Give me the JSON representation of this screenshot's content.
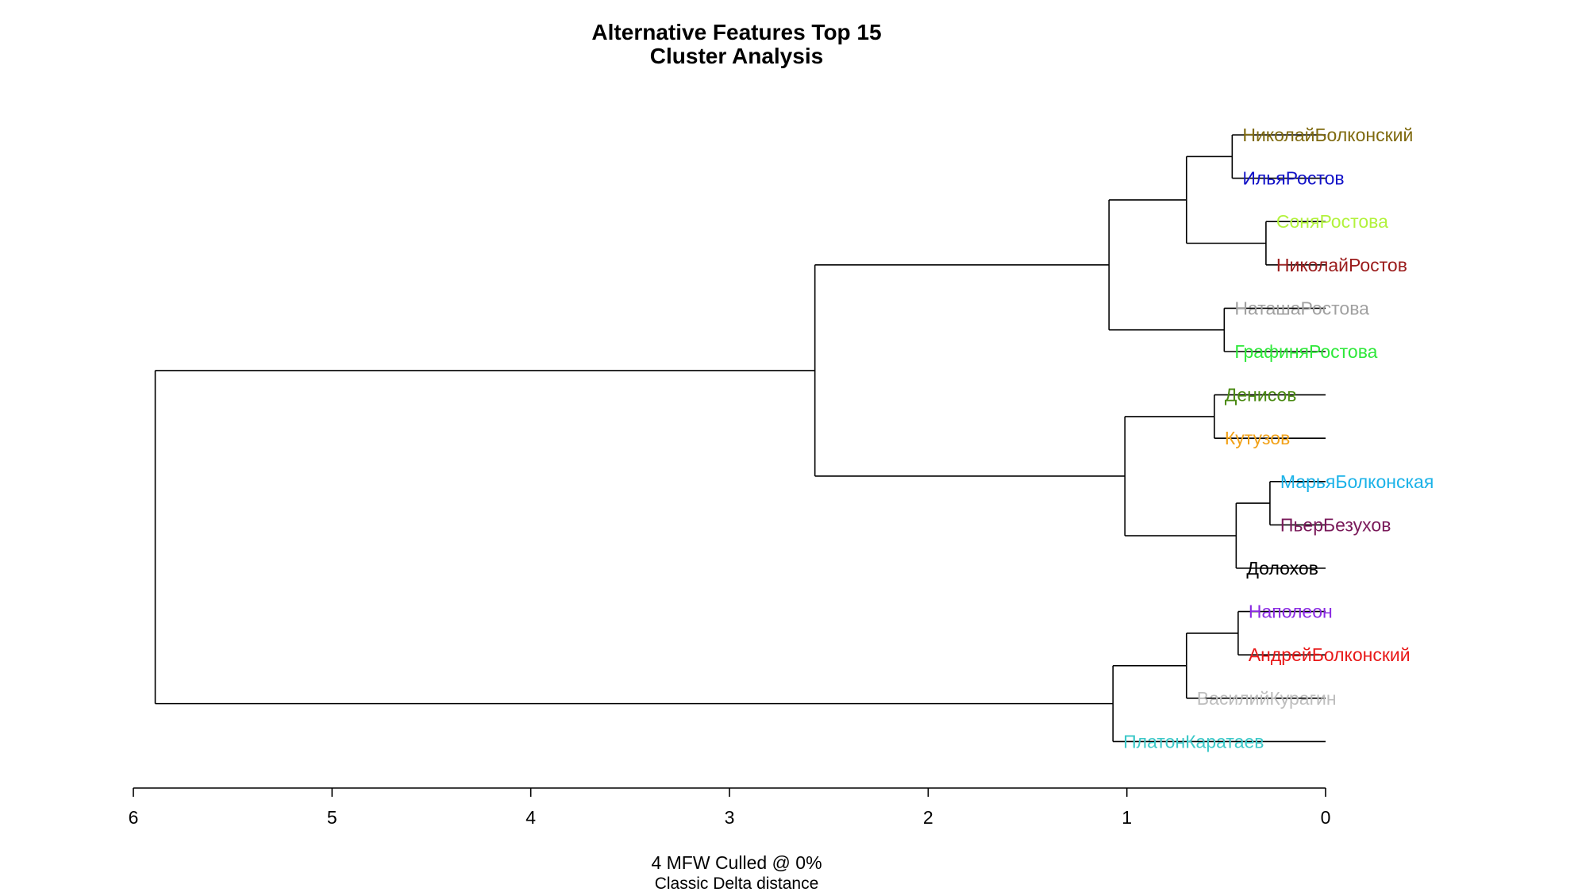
{
  "chart_data": {
    "type": "dendrogram",
    "title": [
      "Alternative Features Top 15",
      "Cluster Analysis"
    ],
    "xlabel": [
      "4 MFW  Culled @ 0%",
      "Classic Delta distance"
    ],
    "xlim": [
      6,
      0
    ],
    "xticks": [
      6,
      5,
      4,
      3,
      2,
      1,
      0
    ],
    "leaves": [
      {
        "label": "НиколайБолконский",
        "color": "#7F6A0F"
      },
      {
        "label": "ИльяРостов",
        "color": "#1212C8"
      },
      {
        "label": "СоняРостова",
        "color": "#B2F23C"
      },
      {
        "label": "НиколайРостов",
        "color": "#9B1C1C"
      },
      {
        "label": "НаташаРостова",
        "color": "#A0A0A0"
      },
      {
        "label": "ГрафиняРостова",
        "color": "#2EE83A"
      },
      {
        "label": "Денисов",
        "color": "#4A8A12"
      },
      {
        "label": "Кутузов",
        "color": "#F2A21A"
      },
      {
        "label": "МарьяБолконская",
        "color": "#1AB2E8"
      },
      {
        "label": "ПьерБезухов",
        "color": "#7A1A5A"
      },
      {
        "label": "Долохов",
        "color": "#000000"
      },
      {
        "label": "Наполеон",
        "color": "#8A2BE2"
      },
      {
        "label": "АндрейБолконский",
        "color": "#E81818"
      },
      {
        "label": "ВасилийКурагин",
        "color": "#BEBEBE"
      },
      {
        "label": "ПлатонКаратаев",
        "color": "#3CC8C8"
      }
    ],
    "merges": [
      {
        "left": "НиколайБолконский",
        "right": "ИльяРостов",
        "height": 0.47
      },
      {
        "left": "СоняРостова",
        "right": "НиколайРостов",
        "height": 0.3
      },
      {
        "left": "NB-IR",
        "right": "SR-NR",
        "height": 0.7
      },
      {
        "left": "НаташаРостова",
        "right": "ГрафиняРостова",
        "height": 0.51
      },
      {
        "left": "Rostovs4",
        "right": "NR-GR",
        "height": 1.09
      },
      {
        "left": "Денисов",
        "right": "Кутузов",
        "height": 0.56
      },
      {
        "left": "МарьяБолконская",
        "right": "ПьерБезухов",
        "height": 0.28
      },
      {
        "left": "MB-PB",
        "right": "Долохов",
        "height": 0.45
      },
      {
        "left": "D-K",
        "right": "MB-PB-D",
        "height": 1.01
      },
      {
        "left": "Group1",
        "right": "Group2",
        "height": 2.57
      },
      {
        "left": "Наполеон",
        "right": "АндрейБолконский",
        "height": 0.44
      },
      {
        "left": "N-AB",
        "right": "ВасилийКурагин",
        "height": 0.7
      },
      {
        "left": "N-AB-VK",
        "right": "ПлатонКаратаев",
        "height": 1.07
      },
      {
        "left": "Main",
        "right": "Group3",
        "height": 5.89
      }
    ]
  }
}
